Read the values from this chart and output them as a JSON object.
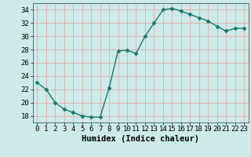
{
  "x": [
    0,
    1,
    2,
    3,
    4,
    5,
    6,
    7,
    8,
    9,
    10,
    11,
    12,
    13,
    14,
    15,
    16,
    17,
    18,
    19,
    20,
    21,
    22,
    23
  ],
  "y": [
    23,
    22,
    20,
    19,
    18.5,
    18,
    17.8,
    17.8,
    22.2,
    27.8,
    27.9,
    27.4,
    30,
    32,
    34,
    34.2,
    33.8,
    33.3,
    32.8,
    32.3,
    31.5,
    30.8,
    31.2,
    31.2
  ],
  "line_color": "#1a7a6a",
  "marker": "D",
  "markersize": 2.5,
  "bg_color": "#cceae8",
  "grid_color": "#e8a0a0",
  "xlabel": "Humidex (Indice chaleur)",
  "ylim": [
    17,
    35
  ],
  "xlim": [
    -0.5,
    23.5
  ],
  "yticks": [
    18,
    20,
    22,
    24,
    26,
    28,
    30,
    32,
    34
  ],
  "xticks": [
    0,
    1,
    2,
    3,
    4,
    5,
    6,
    7,
    8,
    9,
    10,
    11,
    12,
    13,
    14,
    15,
    16,
    17,
    18,
    19,
    20,
    21,
    22,
    23
  ],
  "font_size": 6.5,
  "xlabel_fontsize": 7.5,
  "linewidth": 1.0
}
